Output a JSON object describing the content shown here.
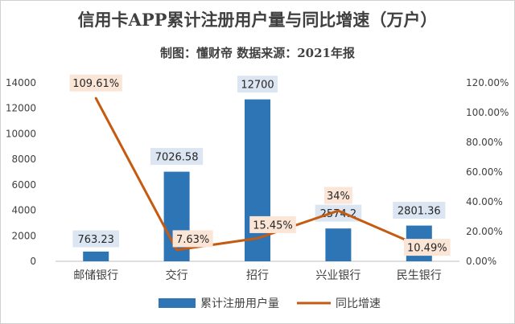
{
  "chart_data": {
    "type": "bar+line",
    "title": "信用卡APP累计注册用户量与同比增速（万户）",
    "subtitle": "制图：懂财帝   数据来源：2021年报",
    "categories": [
      "邮储银行",
      "交行",
      "招行",
      "兴业银行",
      "民生银行"
    ],
    "series": [
      {
        "name": "累计注册用户量",
        "type": "bar",
        "axis": "left",
        "values": [
          763.23,
          7026.58,
          12700,
          2574.2,
          2801.36
        ],
        "labels": [
          "763.23",
          "7026.58",
          "12700",
          "2574.2",
          "2801.36"
        ],
        "color": "#2e75b6",
        "label_bg": "#dce6f2"
      },
      {
        "name": "同比增速",
        "type": "line",
        "axis": "right",
        "values": [
          109.61,
          7.63,
          15.45,
          34,
          10.49
        ],
        "labels": [
          "109.61%",
          "7.63%",
          "15.45%",
          "34%",
          "10.49%"
        ],
        "color": "#c55a11",
        "label_bg": "#fbe5d6"
      }
    ],
    "left_axis": {
      "min": 0,
      "max": 14000,
      "step": 2000,
      "ticks": [
        "0",
        "2000",
        "4000",
        "6000",
        "8000",
        "10000",
        "12000",
        "14000"
      ]
    },
    "right_axis": {
      "min": 0,
      "max": 120,
      "step": 20,
      "ticks": [
        "0.00%",
        "20.00%",
        "40.00%",
        "60.00%",
        "80.00%",
        "100.00%",
        "120.00%"
      ]
    },
    "legend_position": "bottom",
    "grid": false
  }
}
